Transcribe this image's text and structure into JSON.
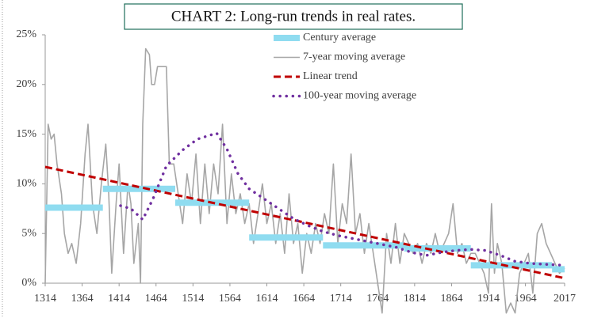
{
  "chart_data": {
    "type": "line",
    "title": "CHART 2: Long-run trends in real rates.",
    "xlim": [
      1314,
      2017
    ],
    "xticks": [
      1314,
      1364,
      1414,
      1464,
      1514,
      1564,
      1614,
      1664,
      1714,
      1764,
      1814,
      1864,
      1914,
      1964,
      2017
    ],
    "ylim": [
      0,
      25
    ],
    "yticks": [
      {
        "value": 0,
        "label": "0%"
      },
      {
        "value": 5,
        "label": "5%"
      },
      {
        "value": 10,
        "label": "10%"
      },
      {
        "value": 15,
        "label": "15%"
      },
      {
        "value": 20,
        "label": "20%"
      },
      {
        "value": 25,
        "label": "25%"
      }
    ],
    "legend": "top-right",
    "series": [
      {
        "name": "Century average",
        "color": "#8fdcf0",
        "x": [
          1314,
          1392,
          null,
          1392,
          1490,
          null,
          1490,
          1590,
          null,
          1590,
          1690,
          null,
          1690,
          1800,
          null,
          1800,
          1890,
          null,
          1890,
          2000,
          null,
          2000,
          2017
        ],
        "values": [
          7.6,
          7.6,
          null,
          9.5,
          9.5,
          null,
          8.1,
          8.1,
          null,
          4.6,
          4.6,
          null,
          3.8,
          3.8,
          null,
          3.5,
          3.5,
          null,
          1.8,
          1.8,
          null,
          1.4,
          1.4
        ]
      },
      {
        "name": "7-year moving average",
        "color": "#a6a6a6",
        "x": [
          1314,
          1318,
          1322,
          1326,
          1330,
          1336,
          1340,
          1345,
          1350,
          1356,
          1362,
          1368,
          1372,
          1378,
          1384,
          1390,
          1396,
          1400,
          1404,
          1410,
          1414,
          1420,
          1426,
          1430,
          1434,
          1440,
          1443,
          1446,
          1450,
          1455,
          1458,
          1462,
          1466,
          1470,
          1478,
          1482,
          1488,
          1494,
          1500,
          1506,
          1512,
          1518,
          1524,
          1530,
          1536,
          1542,
          1548,
          1554,
          1560,
          1566,
          1572,
          1578,
          1584,
          1590,
          1596,
          1602,
          1608,
          1614,
          1620,
          1626,
          1632,
          1638,
          1644,
          1650,
          1656,
          1662,
          1668,
          1674,
          1680,
          1686,
          1692,
          1698,
          1704,
          1710,
          1716,
          1722,
          1728,
          1734,
          1740,
          1746,
          1752,
          1758,
          1764,
          1770,
          1776,
          1782,
          1788,
          1794,
          1800,
          1806,
          1812,
          1818,
          1824,
          1830,
          1836,
          1842,
          1848,
          1854,
          1860,
          1866,
          1872,
          1878,
          1884,
          1890,
          1896,
          1902,
          1908,
          1914,
          1918,
          1922,
          1926,
          1932,
          1938,
          1944,
          1950,
          1956,
          1962,
          1968,
          1974,
          1980,
          1986,
          1992,
          1998,
          2004,
          2010,
          2017
        ],
        "values": [
          0,
          16,
          14.5,
          15,
          12,
          9,
          5,
          3,
          4,
          2,
          6,
          13,
          16,
          8,
          5,
          10,
          14,
          9,
          1,
          8,
          12,
          3,
          10,
          8,
          2,
          6,
          0,
          16,
          23.6,
          23,
          20,
          20,
          21.8,
          21.8,
          21.8,
          12,
          12,
          9,
          6,
          11,
          8,
          13,
          6,
          12,
          7,
          12,
          9,
          16,
          6,
          11,
          7,
          9,
          6,
          8,
          4,
          7,
          10,
          6,
          8,
          4,
          7,
          3,
          9,
          4,
          6,
          1,
          5,
          3,
          6,
          4,
          7,
          5,
          12,
          4,
          8,
          6,
          13,
          5,
          7,
          3,
          6,
          3,
          0,
          -3,
          5,
          2,
          6,
          2,
          5,
          4,
          3,
          4,
          2,
          4,
          3,
          5,
          3,
          4,
          5,
          8,
          3,
          4,
          2,
          3,
          3,
          2,
          1,
          -1,
          8,
          1,
          4,
          2,
          -3,
          -2,
          -3,
          1,
          2,
          3,
          -1,
          5,
          6,
          4,
          3,
          2,
          1,
          1.5
        ]
      },
      {
        "name": "Linear trend",
        "color": "#c00000",
        "x": [
          1314,
          2017
        ],
        "values": [
          11.7,
          0.5
        ]
      },
      {
        "name": "100-year moving average",
        "color": "#7030a0",
        "x": [
          1416,
          1430,
          1446,
          1460,
          1478,
          1500,
          1520,
          1546,
          1560,
          1575,
          1590,
          1610,
          1630,
          1650,
          1670,
          1690,
          1710,
          1730,
          1750,
          1770,
          1790,
          1810,
          1830,
          1850,
          1870,
          1890,
          1910,
          1930,
          1950,
          1970,
          1990,
          2017
        ],
        "values": [
          7.8,
          7.5,
          6.4,
          8.5,
          11.8,
          13.4,
          14.5,
          15.1,
          13.5,
          11,
          9.5,
          8.5,
          7.5,
          6.5,
          5.8,
          5.2,
          4.8,
          4.5,
          4.2,
          3.9,
          3.6,
          3.1,
          2.8,
          3.1,
          3.3,
          3.4,
          3.3,
          2.8,
          2.2,
          2,
          1.9,
          1.8
        ]
      }
    ]
  }
}
